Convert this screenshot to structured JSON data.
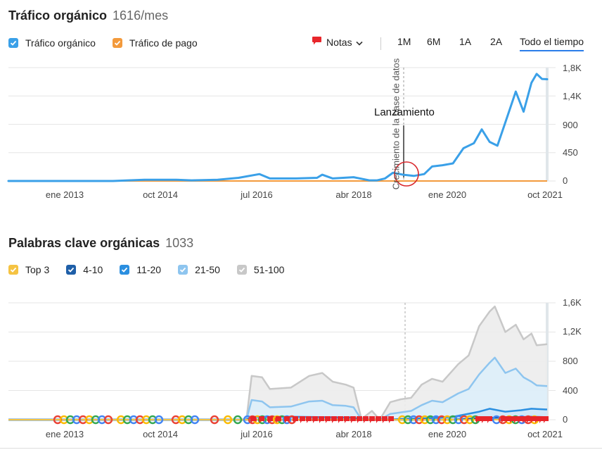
{
  "traffic": {
    "title": "Tráfico orgánico",
    "value": "1616/mes",
    "legend": [
      {
        "label": "Tráfico orgánico",
        "color": "#3aa0e8"
      },
      {
        "label": "Tráfico de pago",
        "color": "#f39a3c"
      }
    ],
    "notes_label": "Notas",
    "ranges": [
      "1M",
      "6M",
      "1A",
      "2A",
      "Todo el tiempo"
    ],
    "active_range": "Todo el tiempo",
    "annotation_vertical": "Crecimiento de la base de datos",
    "annotation_label": "Lanzamiento"
  },
  "keywords": {
    "title": "Palabras clave orgánicas",
    "value": "1033",
    "legend": [
      {
        "label": "Top 3",
        "color": "#f5c342"
      },
      {
        "label": "4-10",
        "color": "#1f5fa8"
      },
      {
        "label": "11-20",
        "color": "#2b8fe0"
      },
      {
        "label": "21-50",
        "color": "#8ec5ef"
      },
      {
        "label": "51-100",
        "color": "#c8c8c8"
      }
    ]
  },
  "chart_data": [
    {
      "type": "line",
      "title": "Tráfico orgánico",
      "x_ticks": [
        "ene 2013",
        "oct 2014",
        "jul 2016",
        "abr 2018",
        "ene 2020",
        "oct 2021"
      ],
      "y_ticks": [
        "0",
        "450",
        "900",
        "1,4K",
        "1,8K"
      ],
      "ylim": [
        0,
        1800
      ],
      "series": [
        {
          "name": "Tráfico orgánico",
          "color": "#3aa0e8",
          "points": [
            [
              2012.0,
              0
            ],
            [
              2013.0,
              0
            ],
            [
              2014.0,
              0
            ],
            [
              2014.6,
              20
            ],
            [
              2015.2,
              20
            ],
            [
              2015.5,
              10
            ],
            [
              2016.0,
              20
            ],
            [
              2016.4,
              50
            ],
            [
              2016.8,
              110
            ],
            [
              2017.0,
              40
            ],
            [
              2017.5,
              40
            ],
            [
              2017.9,
              50
            ],
            [
              2018.0,
              100
            ],
            [
              2018.2,
              40
            ],
            [
              2018.6,
              60
            ],
            [
              2018.9,
              10
            ],
            [
              2019.05,
              10
            ],
            [
              2019.2,
              40
            ],
            [
              2019.35,
              130
            ],
            [
              2019.55,
              100
            ],
            [
              2019.75,
              80
            ],
            [
              2019.95,
              110
            ],
            [
              2020.1,
              230
            ],
            [
              2020.3,
              250
            ],
            [
              2020.5,
              280
            ],
            [
              2020.7,
              520
            ],
            [
              2020.9,
              600
            ],
            [
              2021.05,
              820
            ],
            [
              2021.2,
              620
            ],
            [
              2021.35,
              560
            ],
            [
              2021.55,
              1050
            ],
            [
              2021.7,
              1420
            ],
            [
              2021.85,
              1100
            ],
            [
              2022.0,
              1560
            ],
            [
              2022.1,
              1700
            ],
            [
              2022.2,
              1620
            ],
            [
              2022.3,
              1616
            ]
          ]
        },
        {
          "name": "Tráfico de pago",
          "color": "#f39a3c",
          "points": [
            [
              2012.0,
              0
            ],
            [
              2022.3,
              0
            ]
          ]
        }
      ]
    },
    {
      "type": "area",
      "title": "Palabras clave orgánicas",
      "x_ticks": [
        "ene 2013",
        "oct 2014",
        "jul 2016",
        "abr 2018",
        "ene 2020",
        "oct 2021"
      ],
      "y_ticks": [
        "0",
        "400",
        "800",
        "1,2K",
        "1,6K"
      ],
      "ylim": [
        0,
        1600
      ],
      "series": [
        {
          "name": "51-100",
          "color": "#c8c8c8",
          "points": [
            [
              2012.0,
              0
            ],
            [
              2016.55,
              0
            ],
            [
              2016.65,
              600
            ],
            [
              2016.85,
              580
            ],
            [
              2017.0,
              420
            ],
            [
              2017.4,
              440
            ],
            [
              2017.75,
              600
            ],
            [
              2018.0,
              640
            ],
            [
              2018.2,
              520
            ],
            [
              2018.45,
              480
            ],
            [
              2018.6,
              440
            ],
            [
              2018.75,
              10
            ],
            [
              2018.95,
              120
            ],
            [
              2019.1,
              0
            ],
            [
              2019.3,
              240
            ],
            [
              2019.5,
              280
            ],
            [
              2019.7,
              300
            ],
            [
              2019.9,
              480
            ],
            [
              2020.1,
              560
            ],
            [
              2020.3,
              520
            ],
            [
              2020.6,
              760
            ],
            [
              2020.8,
              880
            ],
            [
              2021.0,
              1280
            ],
            [
              2021.2,
              1480
            ],
            [
              2021.3,
              1550
            ],
            [
              2021.5,
              1200
            ],
            [
              2021.7,
              1300
            ],
            [
              2021.85,
              1100
            ],
            [
              2022.0,
              1180
            ],
            [
              2022.1,
              1020
            ],
            [
              2022.3,
              1033
            ]
          ]
        },
        {
          "name": "21-50",
          "color": "#8ec5ef",
          "points": [
            [
              2012.0,
              0
            ],
            [
              2016.55,
              0
            ],
            [
              2016.65,
              270
            ],
            [
              2016.85,
              250
            ],
            [
              2017.0,
              170
            ],
            [
              2017.4,
              180
            ],
            [
              2017.75,
              250
            ],
            [
              2018.0,
              260
            ],
            [
              2018.2,
              200
            ],
            [
              2018.45,
              190
            ],
            [
              2018.6,
              170
            ],
            [
              2018.75,
              0
            ],
            [
              2019.1,
              0
            ],
            [
              2019.3,
              80
            ],
            [
              2019.5,
              100
            ],
            [
              2019.7,
              120
            ],
            [
              2019.9,
              200
            ],
            [
              2020.1,
              260
            ],
            [
              2020.3,
              240
            ],
            [
              2020.6,
              360
            ],
            [
              2020.8,
              420
            ],
            [
              2021.0,
              620
            ],
            [
              2021.2,
              780
            ],
            [
              2021.3,
              850
            ],
            [
              2021.5,
              640
            ],
            [
              2021.7,
              700
            ],
            [
              2021.85,
              580
            ],
            [
              2022.0,
              520
            ],
            [
              2022.1,
              470
            ],
            [
              2022.3,
              460
            ]
          ]
        },
        {
          "name": "11-20",
          "color": "#2b8fe0",
          "points": [
            [
              2012.0,
              0
            ],
            [
              2016.55,
              0
            ],
            [
              2016.65,
              40
            ],
            [
              2017.5,
              40
            ],
            [
              2018.6,
              30
            ],
            [
              2018.75,
              0
            ],
            [
              2019.3,
              0
            ],
            [
              2019.5,
              10
            ],
            [
              2020.0,
              20
            ],
            [
              2020.5,
              40
            ],
            [
              2021.0,
              110
            ],
            [
              2021.2,
              150
            ],
            [
              2021.5,
              110
            ],
            [
              2021.8,
              130
            ],
            [
              2022.0,
              150
            ],
            [
              2022.3,
              140
            ]
          ]
        },
        {
          "name": "4-10",
          "color": "#1f5fa8",
          "points": [
            [
              2012.0,
              0
            ],
            [
              2020.5,
              0
            ],
            [
              2021.0,
              20
            ],
            [
              2021.5,
              30
            ],
            [
              2022.0,
              40
            ],
            [
              2022.3,
              35
            ]
          ]
        },
        {
          "name": "Top 3",
          "color": "#f5c342",
          "points": [
            [
              2012.0,
              0
            ],
            [
              2022.3,
              0
            ]
          ]
        }
      ]
    }
  ]
}
